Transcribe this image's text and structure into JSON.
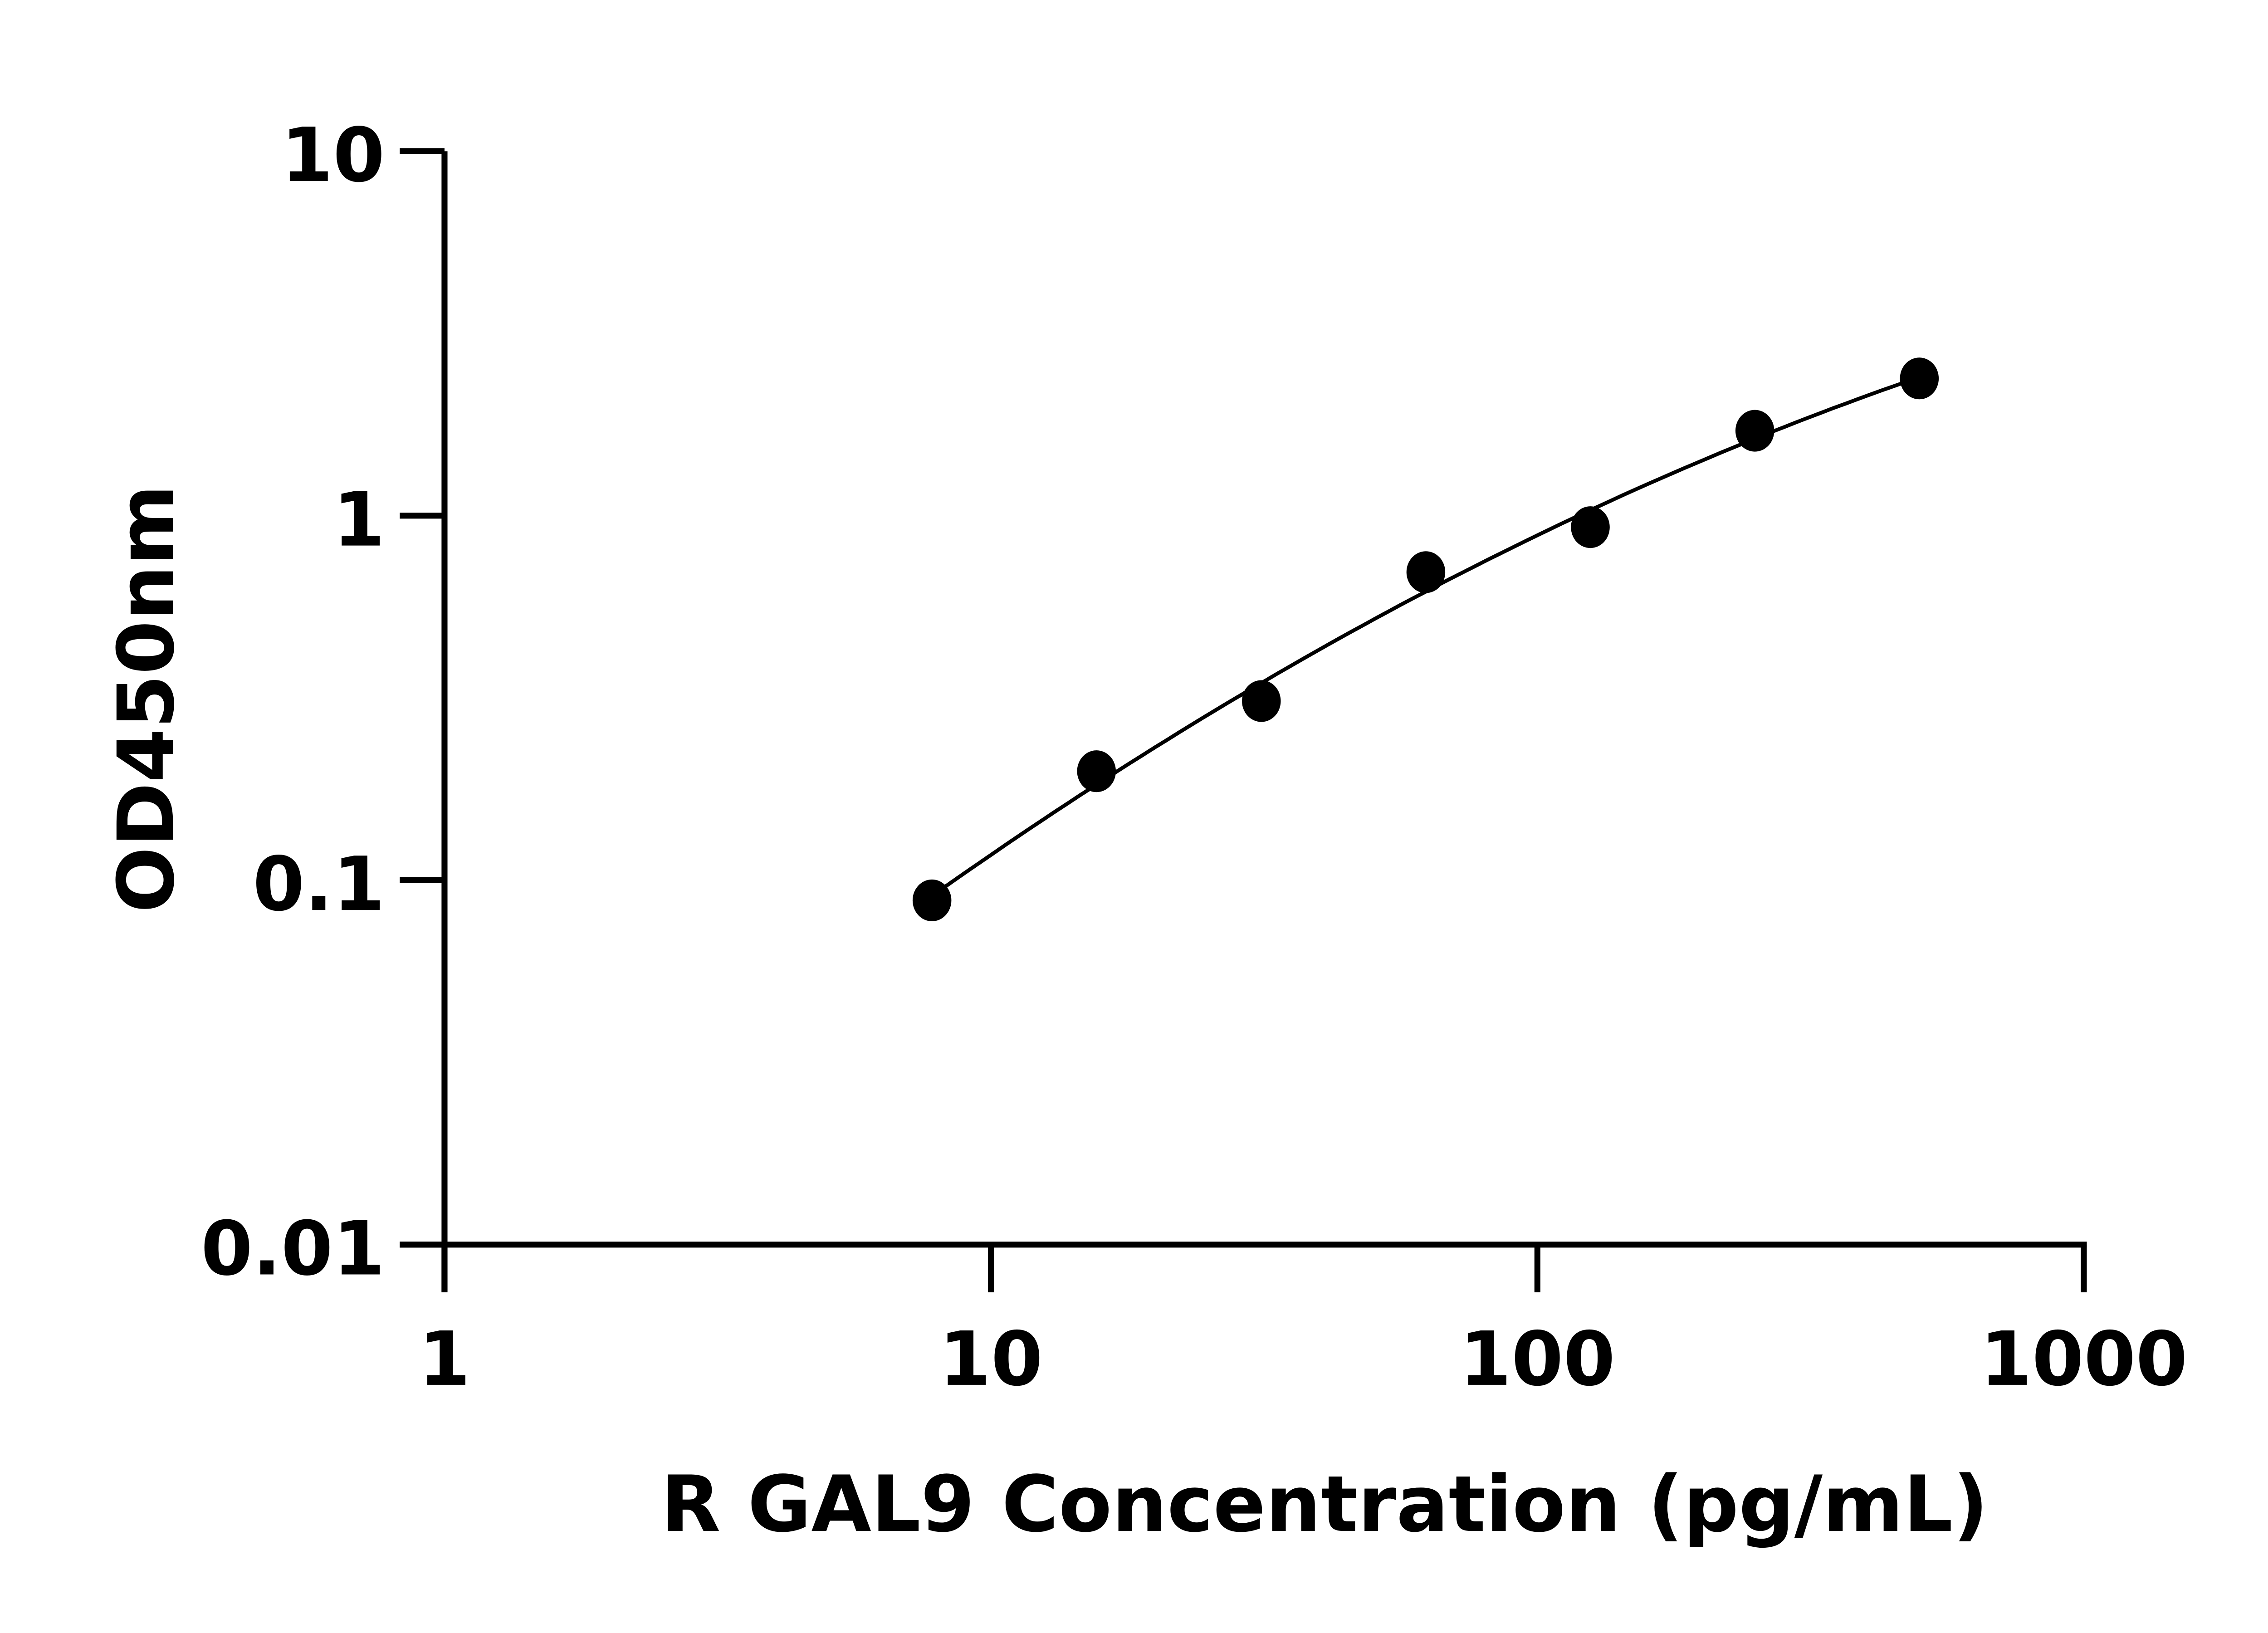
{
  "chart_data": {
    "type": "scatter",
    "title": "",
    "xlabel": "R GAL9 Concentration (pg/mL)",
    "ylabel": "OD450nm",
    "x_scale": "log",
    "y_scale": "log",
    "xlim": [
      1,
      1000
    ],
    "ylim": [
      0.01,
      10
    ],
    "x_ticks": [
      "1",
      "10",
      "100",
      "1000"
    ],
    "y_ticks": [
      "0.01",
      "0.1",
      "1",
      "10"
    ],
    "grid": false,
    "legend": "none",
    "fit_curve": true,
    "marker_color": "#000000",
    "series": [
      {
        "x": [
          7.8,
          15.6,
          31.25,
          62.5,
          125,
          250,
          500
        ],
        "y": [
          0.088,
          0.199,
          0.31,
          0.7,
          0.93,
          1.71,
          2.38
        ]
      }
    ]
  }
}
